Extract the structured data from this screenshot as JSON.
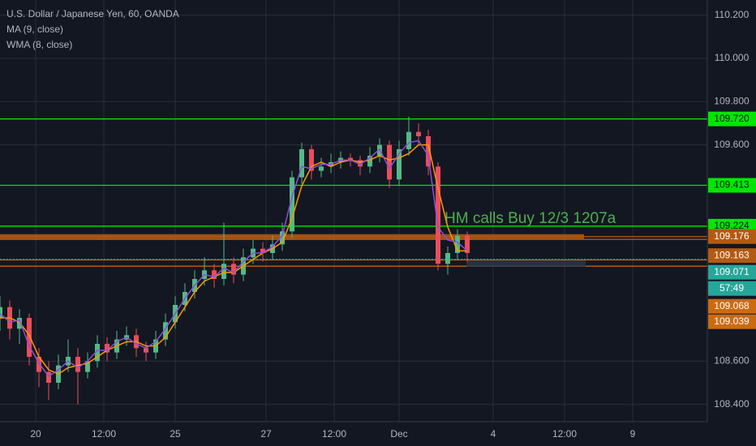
{
  "chart_data": {
    "type": "candlestick",
    "title": "U.S. Dollar / Japanese Yen, 60, OANDA",
    "x": [
      0,
      3,
      6,
      9,
      12,
      15,
      18,
      21,
      24,
      27,
      30,
      33,
      36,
      39,
      42,
      45,
      48,
      51,
      54,
      57,
      60,
      63,
      66,
      69,
      72,
      75,
      78,
      81,
      84,
      87,
      90,
      93,
      96,
      99,
      102,
      105,
      108,
      111,
      114,
      117,
      120,
      123,
      126,
      129,
      132,
      135,
      138,
      141,
      144
    ],
    "open": [
      108.8,
      108.85,
      108.75,
      108.8,
      108.62,
      108.55,
      108.5,
      108.58,
      108.62,
      108.55,
      108.6,
      108.68,
      108.64,
      108.7,
      108.72,
      108.66,
      108.64,
      108.7,
      108.78,
      108.86,
      108.92,
      108.98,
      109.02,
      108.98,
      109.05,
      109.0,
      109.08,
      109.12,
      109.1,
      109.14,
      109.2,
      109.45,
      109.58,
      109.48,
      109.5,
      109.52,
      109.54,
      109.53,
      109.5,
      109.55,
      109.6,
      109.44,
      109.58,
      109.66,
      109.64,
      109.5,
      109.05,
      109.1,
      109.18
    ],
    "high": [
      108.9,
      108.88,
      108.84,
      108.82,
      108.66,
      108.6,
      108.63,
      108.7,
      108.66,
      108.64,
      108.72,
      108.71,
      108.74,
      108.76,
      108.75,
      108.69,
      108.74,
      108.82,
      108.9,
      108.96,
      109.02,
      109.08,
      109.05,
      109.24,
      109.08,
      109.12,
      109.16,
      109.15,
      109.18,
      109.24,
      109.48,
      109.61,
      109.6,
      109.54,
      109.56,
      109.57,
      109.56,
      109.55,
      109.59,
      109.63,
      109.62,
      109.62,
      109.73,
      109.7,
      109.67,
      109.52,
      109.13,
      109.21,
      109.2
    ],
    "low": [
      108.74,
      108.7,
      108.68,
      108.58,
      108.48,
      108.42,
      108.47,
      108.55,
      108.4,
      108.52,
      108.57,
      108.6,
      108.61,
      108.67,
      108.62,
      108.6,
      108.61,
      108.67,
      108.75,
      108.83,
      108.89,
      108.95,
      108.94,
      108.95,
      108.96,
      108.97,
      109.05,
      109.06,
      109.07,
      109.11,
      109.17,
      109.42,
      109.44,
      109.45,
      109.47,
      109.49,
      109.5,
      109.46,
      109.47,
      109.52,
      109.4,
      109.41,
      109.55,
      109.6,
      109.46,
      109.02,
      109.0,
      109.07,
      109.06
    ],
    "close": [
      108.85,
      108.75,
      108.8,
      108.62,
      108.55,
      108.5,
      108.58,
      108.62,
      108.55,
      108.6,
      108.68,
      108.64,
      108.7,
      108.72,
      108.66,
      108.64,
      108.7,
      108.78,
      108.86,
      108.92,
      108.98,
      109.02,
      108.98,
      109.05,
      109.0,
      109.08,
      109.12,
      109.1,
      109.14,
      109.2,
      109.45,
      109.58,
      109.48,
      109.5,
      109.52,
      109.54,
      109.53,
      109.5,
      109.55,
      109.6,
      109.44,
      109.58,
      109.66,
      109.64,
      109.5,
      109.05,
      109.1,
      109.18,
      109.1
    ],
    "up_color": "#53b987",
    "down_color": "#eb4d5c",
    "series": [
      {
        "name": "MA (9, close)",
        "color": "#ff9800",
        "values": [
          108.8,
          108.8,
          108.78,
          108.72,
          108.62,
          108.56,
          108.54,
          108.57,
          108.58,
          108.59,
          108.62,
          108.65,
          108.67,
          108.69,
          108.69,
          108.67,
          108.67,
          108.71,
          108.78,
          108.85,
          108.92,
          108.97,
          108.99,
          109.01,
          109.01,
          109.04,
          109.07,
          109.1,
          109.12,
          109.15,
          109.26,
          109.41,
          109.5,
          109.52,
          109.5,
          109.52,
          109.53,
          109.52,
          109.53,
          109.55,
          109.53,
          109.54,
          109.56,
          109.6,
          109.6,
          109.4,
          109.22,
          109.11,
          109.11
        ]
      },
      {
        "name": "WMA (8, close)",
        "color": "#8e4fd6",
        "values": [
          108.82,
          108.78,
          108.79,
          108.67,
          108.59,
          108.53,
          108.56,
          108.6,
          108.57,
          108.6,
          108.65,
          108.65,
          108.69,
          108.71,
          108.68,
          108.66,
          108.69,
          108.75,
          108.82,
          108.89,
          108.95,
          109.0,
          108.99,
          109.03,
          109.01,
          109.06,
          109.1,
          109.1,
          109.13,
          109.18,
          109.36,
          109.5,
          109.49,
          109.51,
          109.51,
          109.53,
          109.53,
          109.51,
          109.54,
          109.58,
          109.49,
          109.56,
          109.61,
          109.62,
          109.55,
          109.22,
          109.16,
          109.15,
          109.11
        ]
      }
    ],
    "xlim": [
      0,
      218
    ],
    "ylim": [
      108.32,
      110.27
    ],
    "xticks": [
      {
        "value": 11,
        "label": "20"
      },
      {
        "value": 32,
        "label": "12:00"
      },
      {
        "value": 54,
        "label": "25"
      },
      {
        "value": 82,
        "label": "27"
      },
      {
        "value": 103,
        "label": "12:00"
      },
      {
        "value": 123,
        "label": "Dec"
      },
      {
        "value": 152,
        "label": "4"
      },
      {
        "value": 174,
        "label": "12:00"
      },
      {
        "value": 195,
        "label": "9"
      }
    ],
    "yticks": [
      {
        "value": 108.4,
        "label": "108.400"
      },
      {
        "value": 108.6,
        "label": "108.600"
      },
      {
        "value": 109.6,
        "label": "109.600"
      },
      {
        "value": 109.8,
        "label": "109.800"
      },
      {
        "value": 110,
        "label": "110.000"
      },
      {
        "value": 110.2,
        "label": "110.200"
      }
    ],
    "grid": true,
    "levels": [
      {
        "value": 109.72,
        "label": "109.720",
        "color": "#00e600",
        "style": "line"
      },
      {
        "value": 109.413,
        "label": "109.413",
        "color": "#00e600",
        "style": "line"
      },
      {
        "value": 109.224,
        "label": "109.224",
        "color": "#00e600",
        "style": "line"
      },
      {
        "value": 109.176,
        "label": "109.176",
        "color": "#b35a12",
        "style": "band"
      },
      {
        "value": 109.163,
        "label": "109.163",
        "color": "#b35a12",
        "style": "line"
      },
      {
        "value": 109.068,
        "label": "109.068",
        "color": "#cc6a10",
        "style": "line"
      },
      {
        "value": 109.039,
        "label": "109.039",
        "color": "#cc6a10",
        "style": "line"
      }
    ],
    "current_price": {
      "value": 109.071,
      "label": "109.071",
      "countdown": "57:49",
      "color": "#26a69a"
    },
    "annotation": {
      "text": "HM calls Buy 12/3 1207a",
      "value": 109.224,
      "x": 137,
      "color": "#4caf50"
    }
  }
}
